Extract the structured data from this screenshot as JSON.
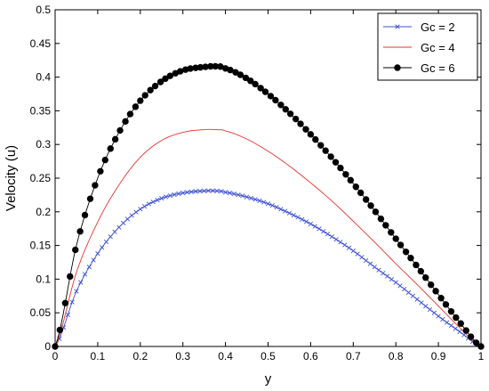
{
  "chart_data": {
    "type": "line",
    "title": "",
    "xlabel": "y",
    "ylabel": "Velocity (u)",
    "xlim": [
      0,
      1
    ],
    "ylim": [
      0,
      0.5
    ],
    "xticks": [
      "0",
      "0.1",
      "0.2",
      "0.3",
      "0.4",
      "0.5",
      "0.6",
      "0.7",
      "0.8",
      "0.9",
      "1"
    ],
    "yticks": [
      "0",
      "0.05",
      "0.1",
      "0.15",
      "0.2",
      "0.25",
      "0.3",
      "0.35",
      "0.4",
      "0.45",
      "0.5"
    ],
    "grid": false,
    "legend_position": "top-right",
    "x": [
      0,
      0.05,
      0.1,
      0.15,
      0.2,
      0.25,
      0.3,
      0.35,
      0.38,
      0.4,
      0.45,
      0.5,
      0.55,
      0.6,
      0.65,
      0.7,
      0.75,
      0.8,
      0.85,
      0.9,
      0.95,
      1.0
    ],
    "series": [
      {
        "name": "Gc = 2",
        "color": "#3b4fd4",
        "marker": "x-mark",
        "values": [
          0,
          0.082,
          0.138,
          0.177,
          0.204,
          0.22,
          0.228,
          0.231,
          0.231,
          0.229,
          0.222,
          0.212,
          0.198,
          0.182,
          0.163,
          0.142,
          0.118,
          0.095,
          0.07,
          0.045,
          0.022,
          0
        ]
      },
      {
        "name": "Gc = 4",
        "color": "#e8322c",
        "marker": "none",
        "values": [
          0,
          0.11,
          0.185,
          0.24,
          0.281,
          0.306,
          0.318,
          0.322,
          0.322,
          0.32,
          0.308,
          0.29,
          0.268,
          0.243,
          0.216,
          0.186,
          0.155,
          0.123,
          0.092,
          0.06,
          0.028,
          0
        ]
      },
      {
        "name": "Gc = 6",
        "color": "#000000",
        "marker": "filled-circle",
        "values": [
          0,
          0.15,
          0.25,
          0.318,
          0.365,
          0.394,
          0.41,
          0.415,
          0.416,
          0.413,
          0.398,
          0.375,
          0.347,
          0.315,
          0.28,
          0.242,
          0.202,
          0.16,
          0.119,
          0.077,
          0.036,
          0
        ]
      }
    ]
  }
}
